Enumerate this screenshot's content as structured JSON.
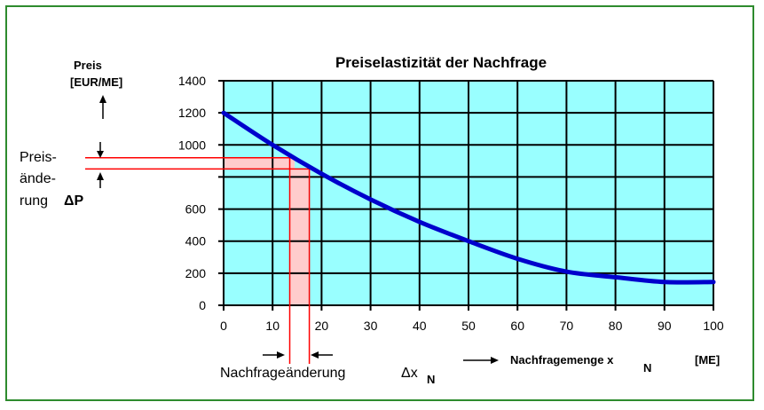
{
  "chart_data": {
    "type": "line",
    "title": "Preiselastizität der Nachfrage",
    "ylabel_line1": "Preis",
    "ylabel_line2": "[EUR/ME]",
    "xlabel_main": "Nachfragemenge x",
    "xlabel_sub": "N",
    "xlabel_unit": "[ME]",
    "xlim": [
      0,
      100
    ],
    "ylim": [
      0,
      1400
    ],
    "x_ticks": [
      "0",
      "10",
      "20",
      "30",
      "40",
      "50",
      "60",
      "70",
      "80",
      "90",
      "100"
    ],
    "y_ticks": [
      "0",
      "200",
      "400",
      "600",
      "",
      "1000",
      "1200",
      "1400"
    ],
    "grid": true,
    "plot_background": "#99ffff",
    "line_color": "#0000cc",
    "series": [
      {
        "x": [
          0,
          10,
          20,
          30,
          40,
          50,
          60,
          70,
          80,
          90,
          100
        ],
        "y": [
          1200,
          1000,
          820,
          660,
          520,
          400,
          290,
          210,
          175,
          145,
          145
        ]
      }
    ],
    "annotations": {
      "price_change": {
        "label_lines": [
          "Preis-",
          "ände-",
          "rung"
        ],
        "symbol": "ΔP",
        "y_values": [
          920,
          850
        ]
      },
      "demand_change": {
        "label": "Nachfrageänderung",
        "symbol": "Δx",
        "symbol_sub": "N",
        "x_values": [
          13.5,
          17.5
        ]
      },
      "highlight_color": "#ffcccc",
      "marker_line_color": "#ff0000"
    }
  }
}
